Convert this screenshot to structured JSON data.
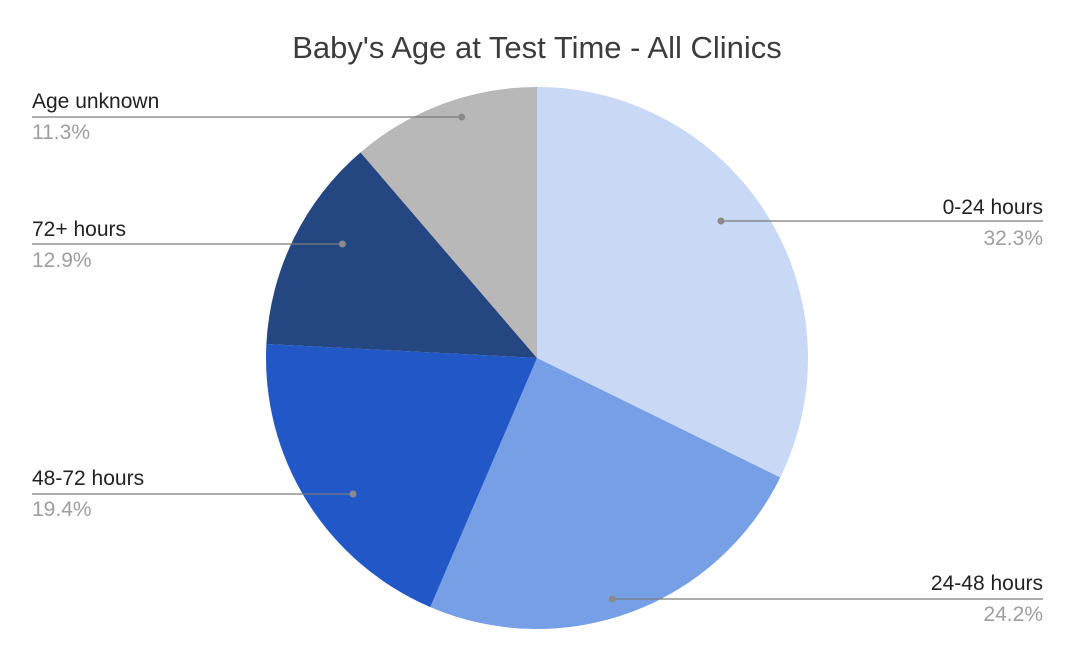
{
  "chart_data": {
    "type": "pie",
    "title": "Baby's Age at Test Time - All Clinics",
    "slices": [
      {
        "label": "0-24 hours",
        "value": 32.3,
        "value_label": "32.3%",
        "color": "#c9d9f5"
      },
      {
        "label": "24-48 hours",
        "value": 24.2,
        "value_label": "24.2%",
        "color": "#769fe5"
      },
      {
        "label": "48-72 hours",
        "value": 19.4,
        "value_label": "19.4%",
        "color": "#2157c7"
      },
      {
        "label": "72+ hours",
        "value": 12.9,
        "value_label": "12.9%",
        "color": "#244681"
      },
      {
        "label": "Age unknown",
        "value": 11.3,
        "value_label": "11.3%",
        "color": "#b8b8b8"
      }
    ],
    "start_angle_deg": 0,
    "direction": "clockwise",
    "legend": "labels with leader lines"
  }
}
